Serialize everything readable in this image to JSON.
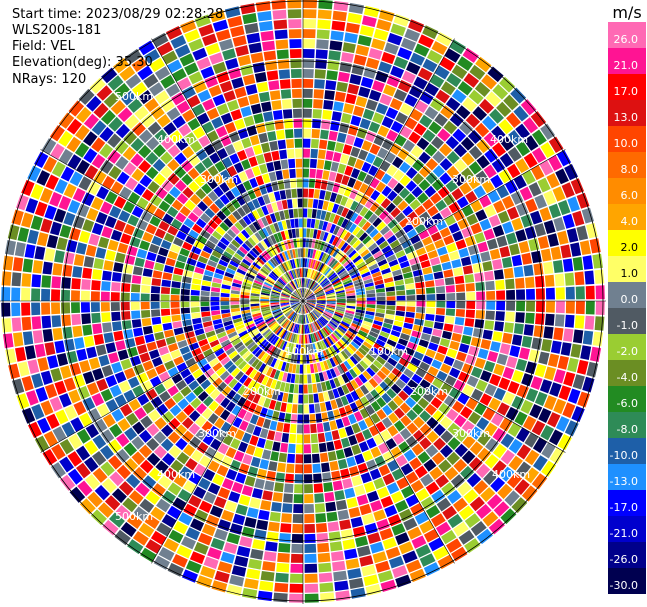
{
  "header": {
    "start_time": "Start time: 2023/08/29 02:28:28",
    "instrument": "WLS200s-181",
    "field": "Field: VEL",
    "elevation": "Elevation(deg): 35.30",
    "nrays": "NRays: 120"
  },
  "rings": {
    "labels": [
      "100km",
      "200km",
      "300km",
      "400km",
      "500km"
    ],
    "label_color": "#ffffff"
  },
  "colorbar": {
    "unit": "m/s",
    "ticks": [
      "26.0",
      "21.0",
      "17.0",
      "13.0",
      "10.0",
      "8.0",
      "6.0",
      "4.0",
      "2.0",
      "1.0",
      "0.0",
      "-1.0",
      "-2.0",
      "-4.0",
      "-6.0",
      "-8.0",
      "-10.0",
      "-13.0",
      "-17.0",
      "-21.0",
      "-26.0",
      "-30.0"
    ],
    "colors": [
      "#ff69b4",
      "#ff1493",
      "#ff0000",
      "#dd1111",
      "#ff4500",
      "#ff6a00",
      "#ff8c00",
      "#ffa500",
      "#ffff00",
      "#ffff66",
      "#708090",
      "#505a63",
      "#9acd32",
      "#6b8e23",
      "#228b22",
      "#2e8b57",
      "#1e5fa8",
      "#1e90ff",
      "#0000ff",
      "#0000cd",
      "#00008b",
      "#000050"
    ]
  }
}
